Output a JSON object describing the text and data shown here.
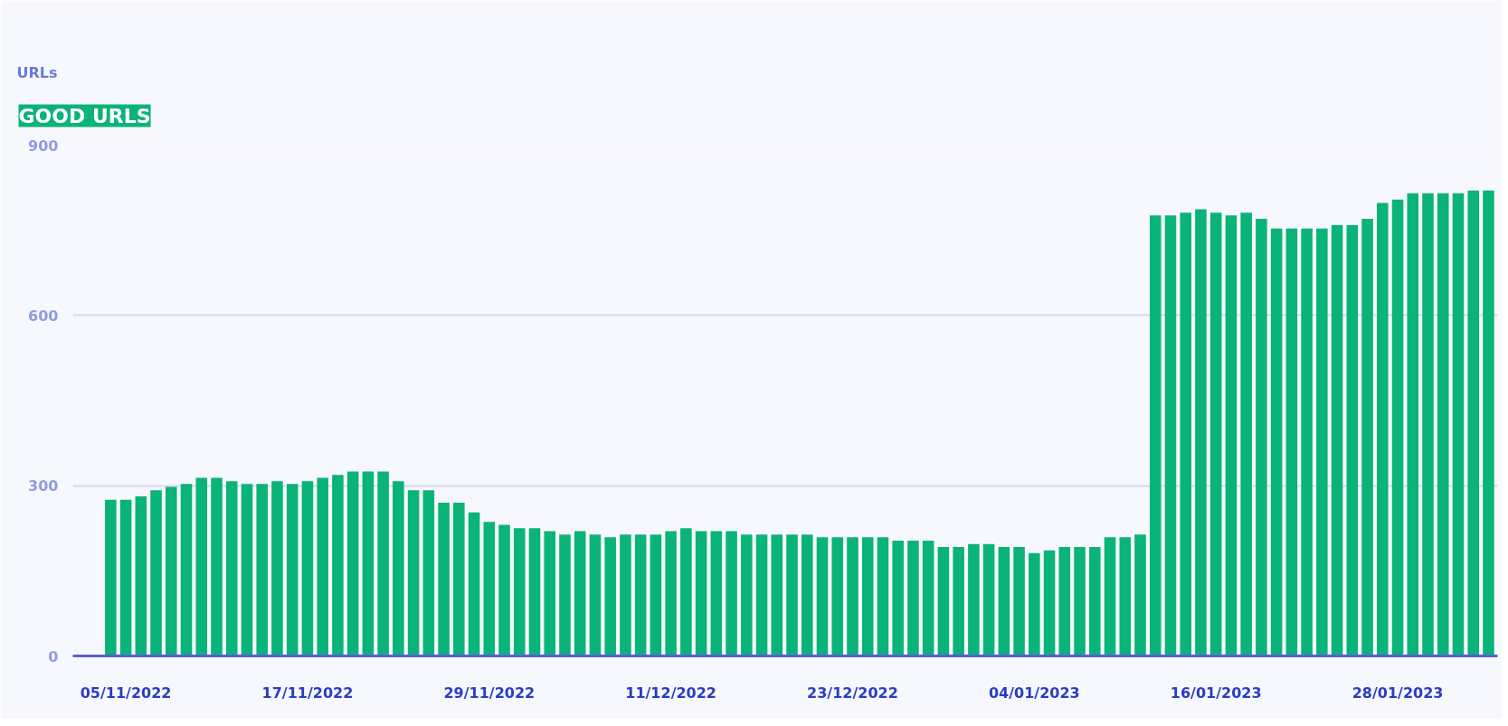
{
  "chart_data": {
    "type": "bar",
    "title": "GOOD URLS",
    "ylabel": "URLs",
    "color": "#0ab377",
    "categories": [
      null,
      "05/11/2022",
      null,
      null,
      null,
      null,
      null,
      null,
      null,
      null,
      null,
      null,
      null,
      "17/11/2022",
      null,
      null,
      null,
      null,
      null,
      null,
      null,
      null,
      null,
      null,
      null,
      "29/11/2022",
      null,
      null,
      null,
      null,
      null,
      null,
      null,
      null,
      null,
      null,
      null,
      "11/12/2022",
      null,
      null,
      null,
      null,
      null,
      null,
      null,
      null,
      null,
      null,
      null,
      "23/12/2022",
      null,
      null,
      null,
      null,
      null,
      null,
      null,
      null,
      null,
      null,
      null,
      "04/01/2023",
      null,
      null,
      null,
      null,
      null,
      null,
      null,
      null,
      null,
      null,
      null,
      "16/01/2023",
      null,
      null,
      null,
      null,
      null,
      null,
      null,
      null,
      null,
      null,
      null,
      "28/01/2023",
      null,
      null,
      null,
      null,
      null,
      null
    ],
    "values": [
      275,
      275,
      281,
      292,
      298,
      303,
      314,
      314,
      308,
      303,
      303,
      308,
      303,
      308,
      314,
      319,
      325,
      325,
      325,
      308,
      292,
      292,
      270,
      270,
      253,
      236,
      231,
      225,
      225,
      220,
      214,
      220,
      214,
      209,
      214,
      214,
      214,
      220,
      225,
      220,
      220,
      220,
      214,
      214,
      214,
      214,
      214,
      209,
      209,
      209,
      209,
      209,
      203,
      203,
      203,
      192,
      192,
      197,
      197,
      192,
      192,
      181,
      186,
      192,
      192,
      192,
      209,
      209,
      214,
      776,
      776,
      781,
      787,
      781,
      776,
      781,
      770,
      753,
      753,
      753,
      753,
      759,
      759,
      770,
      798,
      804,
      815,
      815,
      815,
      815,
      820,
      820
    ],
    "ylim": [
      0,
      900
    ],
    "yticks": [
      0,
      300,
      600,
      900
    ],
    "grid": "y"
  }
}
